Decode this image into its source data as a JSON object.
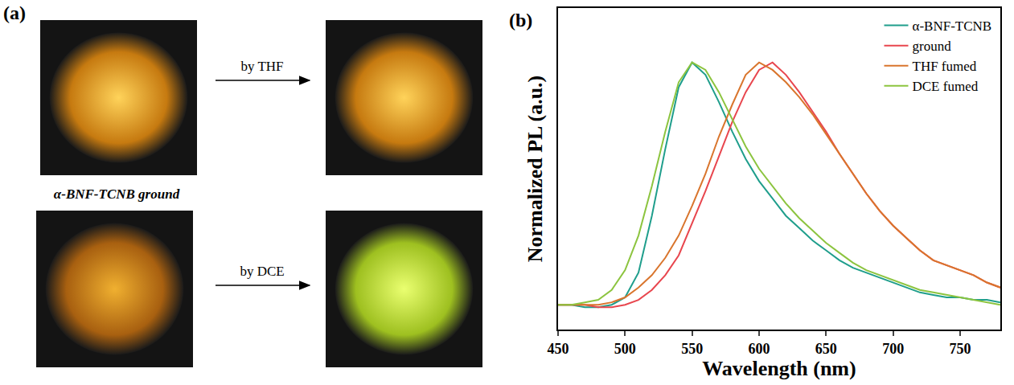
{
  "panel_a": {
    "label": "(a)",
    "arrow_labels": [
      "by THF",
      "by DCE"
    ],
    "caption": "α-BNF-TCNB ground"
  },
  "chart_data": {
    "type": "line",
    "annotations": [
      {
        "text": "(b)"
      }
    ],
    "x_label": "Wavelength (nm)",
    "y_label": "Normalized PL (a.u.)",
    "x": [
      450,
      460,
      470,
      480,
      490,
      500,
      510,
      520,
      530,
      540,
      550,
      560,
      570,
      580,
      590,
      600,
      610,
      620,
      630,
      640,
      650,
      660,
      670,
      680,
      690,
      700,
      710,
      720,
      730,
      740,
      750,
      760,
      770,
      780
    ],
    "series": [
      {
        "name": "α-BNF-TCNB",
        "color": "#1f9e8c",
        "values": [
          0.02,
          0.02,
          0.01,
          0.01,
          0.02,
          0.05,
          0.15,
          0.38,
          0.65,
          0.9,
          1.0,
          0.95,
          0.84,
          0.72,
          0.61,
          0.52,
          0.45,
          0.38,
          0.33,
          0.28,
          0.24,
          0.2,
          0.17,
          0.15,
          0.13,
          0.11,
          0.09,
          0.07,
          0.06,
          0.05,
          0.05,
          0.04,
          0.04,
          0.03
        ]
      },
      {
        "name": "ground",
        "color": "#e8464e",
        "values": [
          0.02,
          0.02,
          0.02,
          0.01,
          0.01,
          0.02,
          0.04,
          0.08,
          0.14,
          0.22,
          0.35,
          0.48,
          0.62,
          0.76,
          0.88,
          0.97,
          1.0,
          0.95,
          0.88,
          0.8,
          0.72,
          0.63,
          0.55,
          0.47,
          0.4,
          0.34,
          0.29,
          0.24,
          0.2,
          0.18,
          0.16,
          0.14,
          0.11,
          0.09
        ]
      },
      {
        "name": "THF fumed",
        "color": "#d9752d",
        "values": [
          0.02,
          0.02,
          0.02,
          0.02,
          0.03,
          0.05,
          0.09,
          0.14,
          0.21,
          0.3,
          0.42,
          0.55,
          0.7,
          0.83,
          0.95,
          1.0,
          0.97,
          0.92,
          0.86,
          0.79,
          0.71,
          0.63,
          0.55,
          0.47,
          0.4,
          0.34,
          0.29,
          0.24,
          0.2,
          0.18,
          0.16,
          0.14,
          0.11,
          0.09
        ]
      },
      {
        "name": "DCE fumed",
        "color": "#8cc43f",
        "values": [
          0.02,
          0.02,
          0.03,
          0.04,
          0.08,
          0.16,
          0.3,
          0.5,
          0.72,
          0.92,
          1.0,
          0.97,
          0.88,
          0.77,
          0.66,
          0.57,
          0.5,
          0.43,
          0.37,
          0.32,
          0.27,
          0.23,
          0.19,
          0.16,
          0.14,
          0.12,
          0.1,
          0.08,
          0.07,
          0.06,
          0.05,
          0.04,
          0.03,
          0.02
        ]
      }
    ],
    "xlim": [
      450,
      780
    ],
    "xticks": [
      450,
      500,
      550,
      600,
      650,
      700,
      750
    ],
    "ylim": [
      -0.08,
      1.22
    ],
    "yticks": [],
    "tick_labels": "x",
    "grid": false,
    "legend": "top-right"
  }
}
